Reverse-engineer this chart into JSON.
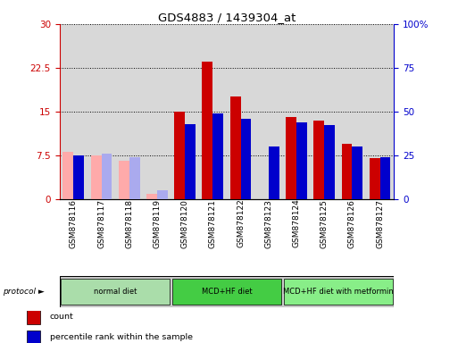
{
  "title": "GDS4883 / 1439304_at",
  "samples": [
    "GSM878116",
    "GSM878117",
    "GSM878118",
    "GSM878119",
    "GSM878120",
    "GSM878121",
    "GSM878122",
    "GSM878123",
    "GSM878124",
    "GSM878125",
    "GSM878126",
    "GSM878127"
  ],
  "count_values": [
    null,
    null,
    null,
    null,
    15.0,
    23.5,
    17.5,
    null,
    14.0,
    13.5,
    9.5,
    7.0
  ],
  "count_absent": [
    8.0,
    7.5,
    6.5,
    0.8,
    null,
    null,
    null,
    null,
    null,
    null,
    null,
    null
  ],
  "percentile_values": [
    25.0,
    null,
    null,
    null,
    43.0,
    49.0,
    46.0,
    30.0,
    44.0,
    42.0,
    30.0,
    24.0
  ],
  "percentile_absent": [
    null,
    26.0,
    24.0,
    5.0,
    null,
    null,
    null,
    null,
    null,
    null,
    null,
    null
  ],
  "protocols": [
    {
      "label": "normal diet",
      "start": 0,
      "end": 4,
      "color": "#aaeea a"
    },
    {
      "label": "MCD+HF diet",
      "start": 4,
      "end": 8,
      "color": "#44dd44"
    },
    {
      "label": "MCD+HF diet with metformin",
      "start": 8,
      "end": 12,
      "color": "#88ee88"
    }
  ],
  "ylim_left": [
    0,
    30
  ],
  "ylim_right": [
    0,
    100
  ],
  "yticks_left": [
    0,
    7.5,
    15,
    22.5,
    30
  ],
  "yticks_right": [
    0,
    25,
    50,
    75,
    100
  ],
  "ytick_labels_left": [
    "0",
    "7.5",
    "15",
    "22.5",
    "30"
  ],
  "ytick_labels_right": [
    "0",
    "25",
    "50",
    "75",
    "100%"
  ],
  "bar_width": 0.38,
  "color_count": "#cc0000",
  "color_percentile": "#0000cc",
  "color_count_absent": "#ffaaaa",
  "color_percentile_absent": "#aaaaee",
  "bar_bg_color": "#d8d8d8",
  "proto_color_1": "#aaddaa",
  "proto_color_2": "#44cc44",
  "proto_color_3": "#88ee88"
}
